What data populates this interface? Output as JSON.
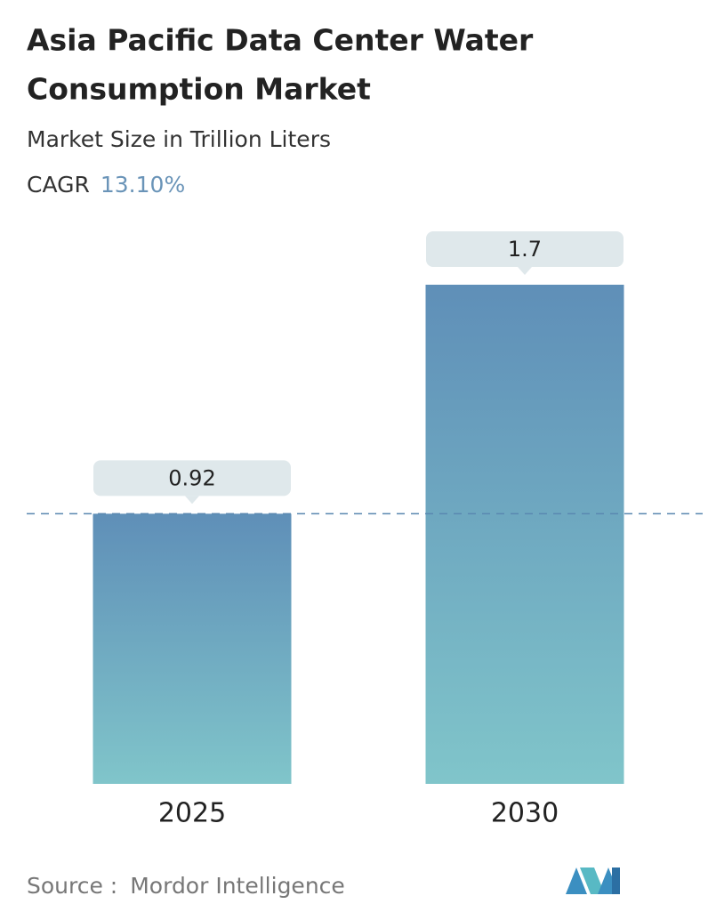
{
  "chart_data": {
    "type": "bar",
    "title": "Asia Pacific Data Center Water Consumption Market",
    "subtitle": "Market Size in Trillion Liters",
    "cagr": {
      "label": "CAGR",
      "value": "13.10%"
    },
    "categories": [
      "2025",
      "2030"
    ],
    "values": [
      0.92,
      1.7
    ],
    "gradient": [
      "#5f8fb8",
      "#80c5ca"
    ],
    "source": {
      "label": "Source :",
      "name": "Mordor Intelligence"
    }
  }
}
